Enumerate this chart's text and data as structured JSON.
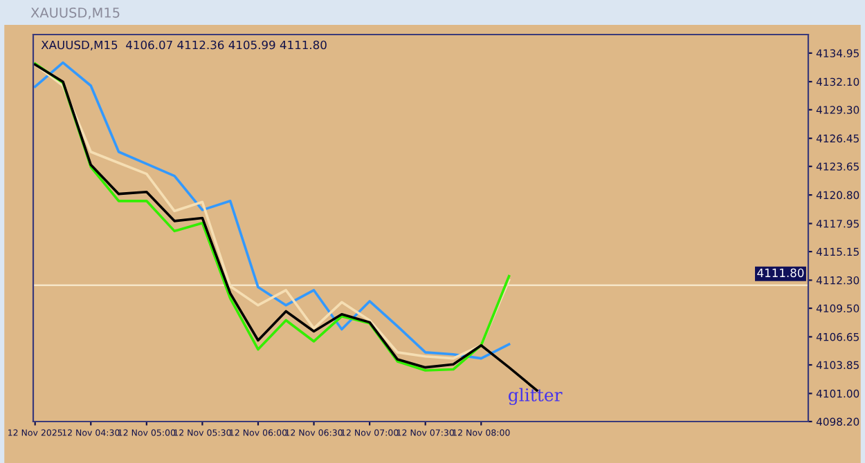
{
  "chart_data": {
    "type": "line",
    "title": "XAUUSD,M15",
    "subtitle": "XAUUSD,M15  4106.07 4112.36 4105.99 4111.80",
    "x": [
      "2025-11-12T04:00",
      "2025-11-12T04:15",
      "2025-11-12T04:30",
      "2025-11-12T04:45",
      "2025-11-12T05:00",
      "2025-11-12T05:15",
      "2025-11-12T05:30",
      "2025-11-12T05:45",
      "2025-11-12T06:00",
      "2025-11-12T06:15",
      "2025-11-12T06:30",
      "2025-11-12T06:45",
      "2025-11-12T07:00",
      "2025-11-12T07:15",
      "2025-11-12T07:30",
      "2025-11-12T07:45",
      "2025-11-12T08:00",
      "2025-11-12T08:15",
      "2025-11-12T08:30"
    ],
    "series": [
      {
        "color": "#3399ff",
        "values": [
          4131.6,
          4134.0,
          4131.7,
          4125.1,
          4123.9,
          4122.7,
          4119.3,
          4120.2,
          4111.6,
          4109.8,
          4111.3,
          4107.4,
          4110.2,
          4107.7,
          4105.1,
          4104.9,
          4104.5,
          4105.9,
          null
        ]
      },
      {
        "color": "#f5deb3",
        "values": [
          4133.8,
          4131.7,
          4125.1,
          4124.0,
          4122.9,
          4119.2,
          4120.1,
          4111.7,
          4109.8,
          4111.3,
          4107.5,
          4110.1,
          4108.3,
          4105.1,
          4104.7,
          4104.5,
          4105.8,
          4112.3,
          null
        ]
      },
      {
        "color": "#33ee00",
        "values": [
          4133.9,
          4132.0,
          4123.6,
          4120.2,
          4120.2,
          4117.2,
          4118.0,
          4110.5,
          4105.4,
          4108.3,
          4106.2,
          4108.7,
          4108.0,
          4104.2,
          4103.3,
          4103.4,
          4105.8,
          4112.7,
          null
        ]
      },
      {
        "color": "#000000",
        "values": [
          4133.8,
          4132.1,
          4123.8,
          4120.9,
          4121.1,
          4118.2,
          4118.5,
          4111.0,
          4106.3,
          4109.2,
          4107.2,
          4108.9,
          4108.1,
          4104.4,
          4103.6,
          4103.9,
          4105.8,
          4103.6,
          4101.3
        ]
      }
    ],
    "xlim": [
      "2025-11-12T03:59",
      "2025-11-12T10:56"
    ],
    "xticks": [
      {
        "value": "2025-11-12T04:00",
        "label": "12 Nov 2025"
      },
      {
        "value": "2025-11-12T04:30",
        "label": "12 Nov 04:30"
      },
      {
        "value": "2025-11-12T05:00",
        "label": "12 Nov 05:00"
      },
      {
        "value": "2025-11-12T05:30",
        "label": "12 Nov 05:30"
      },
      {
        "value": "2025-11-12T06:00",
        "label": "12 Nov 06:00"
      },
      {
        "value": "2025-11-12T06:30",
        "label": "12 Nov 06:30"
      },
      {
        "value": "2025-11-12T07:00",
        "label": "12 Nov 07:00"
      },
      {
        "value": "2025-11-12T07:30",
        "label": "12 Nov 07:30"
      },
      {
        "value": "2025-11-12T08:00",
        "label": "12 Nov 08:00"
      }
    ],
    "ylim": [
      4098.2,
      4136.8
    ],
    "yticks": [
      {
        "value": 4098.2,
        "label": "4098.20"
      },
      {
        "value": 4101.0,
        "label": "4101.00"
      },
      4103.85,
      4106.65,
      {
        "value": 4109.5,
        "label": "4109.50"
      },
      {
        "value": 4112.3,
        "label": "4112.30"
      },
      4115.15,
      4117.95,
      {
        "value": 4120.8,
        "label": "4120.80"
      },
      4123.65,
      4126.45,
      {
        "value": 4129.3,
        "label": "4129.30"
      },
      {
        "value": 4132.1,
        "label": "4132.10"
      },
      4134.95
    ],
    "ref_lines": [
      {
        "axis": "y",
        "value": 4111.8,
        "label": "4111.80",
        "color": "#f5e6c8"
      }
    ],
    "annotations": [
      {
        "text": "glitter",
        "x": "2025-11-12T08:29",
        "y": 4100.7
      }
    ],
    "grid": false,
    "marker": "none",
    "line_style": "solid"
  }
}
